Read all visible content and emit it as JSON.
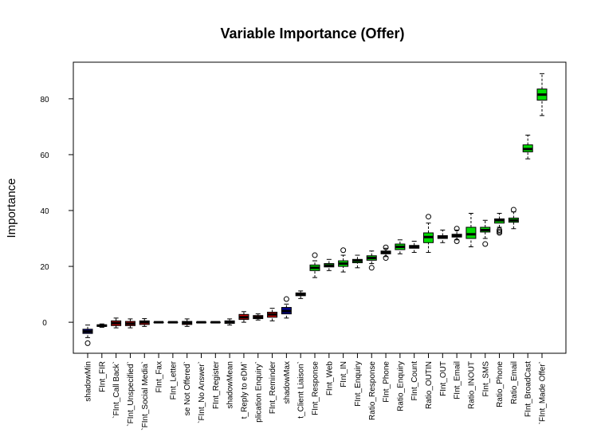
{
  "chart_data": {
    "type": "boxplot",
    "title": "Variable Importance (Offer)",
    "y_label": "Importance",
    "categories": [
      "shadowMin",
      "FInt_FIR",
      "`FInt_Call Back`",
      "`FInt_Unspecified`",
      "`FInt_Social Media`",
      "FInt_Fax",
      "FInt_Letter",
      "se Not Offered`",
      "`FInt_No Answer`",
      "FInt_Register",
      "shadowMean",
      "t_Reply to eDM`",
      "plication Enquiry`",
      "FInt_Reminder",
      "shadowMax",
      "t_Client Liaison`",
      "FInt_Response",
      "FInt_Web",
      "FInt_IN",
      "FInt_Enquiry",
      "Ratio_Response",
      "FInt_Phone",
      "Ratio_Enquiry",
      "FInt_Count",
      "Ratio_OUTIN",
      "FInt_OUT",
      "FInt_Email",
      "Ratio_INOUT",
      "FInt_SMS",
      "Ratio_Phone",
      "Ratio_Email",
      "FInt_BroadCast",
      "`FInt_Made Offer`"
    ],
    "min": [
      -5.5,
      -1.8,
      -2,
      -2,
      -1.5,
      0,
      0,
      -1.5,
      0,
      0,
      -1,
      0,
      0.8,
      0.5,
      1.5,
      8.5,
      16,
      18.5,
      18,
      19.5,
      21,
      23.5,
      24.5,
      25,
      25,
      28.5,
      29.5,
      27,
      30,
      34,
      33.5,
      58.5,
      74
    ],
    "q1": [
      -4,
      -1.5,
      -1.2,
      -1.2,
      -0.8,
      0,
      0,
      -0.8,
      0,
      0,
      -0.4,
      1,
      1.3,
      1.8,
      3,
      9.5,
      18.5,
      19.8,
      20,
      21.3,
      22.2,
      24.5,
      26,
      26.5,
      28.5,
      30,
      30.5,
      30,
      32.3,
      35.5,
      35.8,
      61,
      79.5
    ],
    "median": [
      -3.3,
      -1.2,
      -0.3,
      -0.5,
      0,
      0,
      0,
      -0.2,
      0,
      0,
      0,
      1.8,
      1.8,
      2.8,
      4,
      10,
      19.5,
      20.3,
      21,
      22,
      23,
      25,
      27,
      27,
      30.5,
      30.5,
      31,
      31.5,
      33,
      36.5,
      36.5,
      62,
      81.5
    ],
    "q3": [
      -2.5,
      -0.9,
      0.5,
      0.3,
      0.5,
      0,
      0,
      0.3,
      0,
      0,
      0.5,
      2.8,
      2.4,
      3.6,
      5.3,
      10.5,
      20.5,
      21,
      22,
      22.5,
      23.8,
      25.5,
      28,
      27.5,
      32,
      31,
      31.5,
      34,
      34,
      37,
      37.3,
      63.5,
      83.5
    ],
    "max": [
      -1,
      -0.6,
      1.5,
      1.2,
      1.3,
      0,
      0,
      1.2,
      0,
      0,
      1.2,
      3.8,
      3,
      5,
      6.5,
      11.2,
      22,
      22.5,
      24,
      24,
      25.5,
      26.5,
      29.5,
      29,
      35.5,
      33,
      33,
      39,
      36.5,
      39,
      39.5,
      67,
      89
    ],
    "outliers": [
      [
        -7.5
      ],
      [],
      [],
      [],
      [],
      [],
      [],
      [],
      [],
      [],
      [],
      [],
      [],
      [],
      [
        8.3
      ],
      [],
      [
        24
      ],
      [],
      [
        25.8
      ],
      [],
      [
        19.5
      ],
      [
        23,
        26.8
      ],
      [],
      [],
      [
        37.8
      ],
      [],
      [
        29,
        33.5
      ],
      [],
      [
        28
      ],
      [
        33,
        32.5,
        32
      ],
      [
        40.3
      ],
      [],
      []
    ],
    "colors": [
      "#00008b",
      "#cc0000",
      "#cc0000",
      "#cc0000",
      "#cc0000",
      "#cc0000",
      "#cc0000",
      "#cc0000",
      "#cc0000",
      "#cc0000",
      "#00008b",
      "#cc0000",
      "#cc0000",
      "#cc0000",
      "#00008b",
      "#cc0000",
      "#00dd00",
      "#00dd00",
      "#00dd00",
      "#00dd00",
      "#00dd00",
      "#00dd00",
      "#00dd00",
      "#00dd00",
      "#00dd00",
      "#00dd00",
      "#00dd00",
      "#00dd00",
      "#00dd00",
      "#00dd00",
      "#00dd00",
      "#00dd00",
      "#00dd00"
    ],
    "ylim": [
      -11.1,
      93.1
    ],
    "yticks": [
      0,
      20,
      40,
      60,
      80
    ]
  }
}
